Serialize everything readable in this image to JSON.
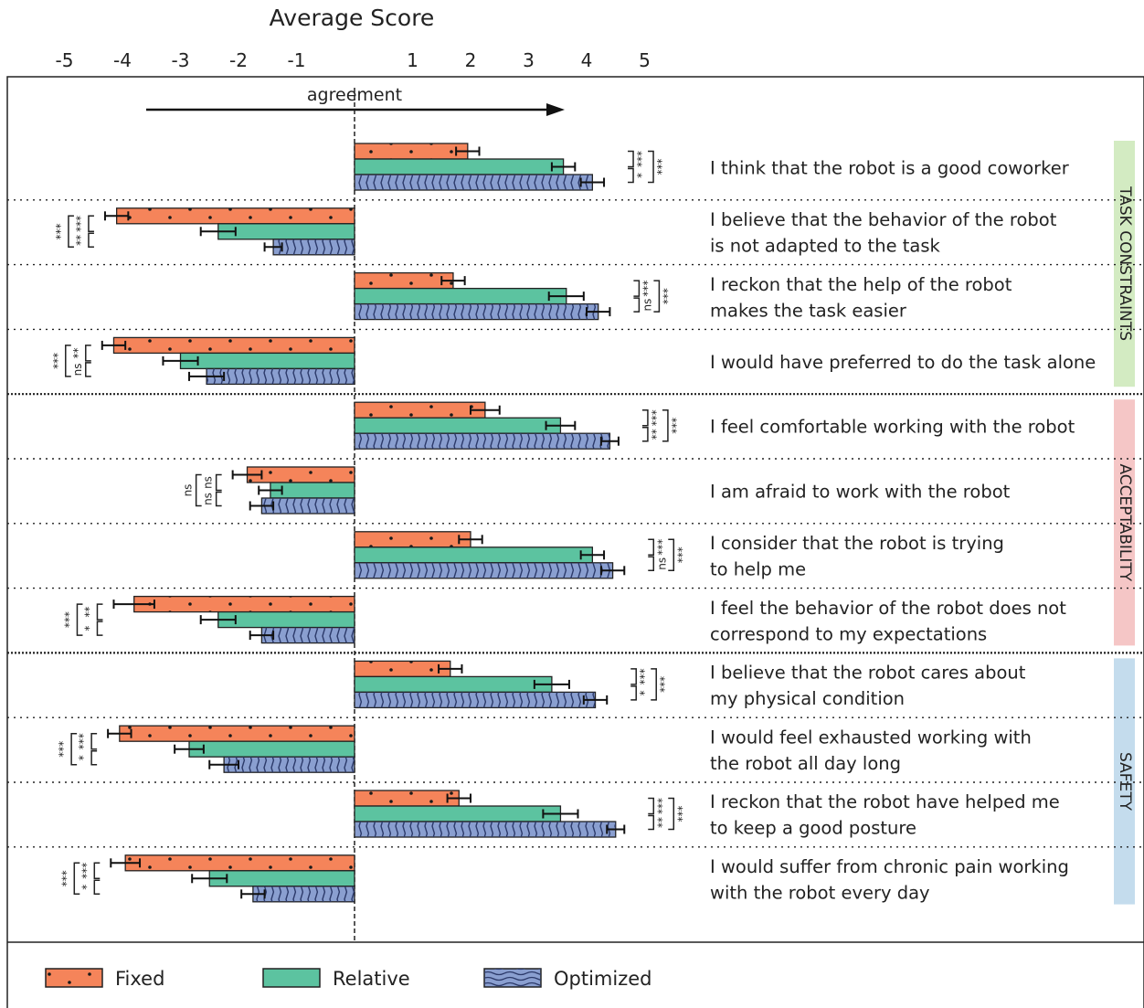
{
  "chart_data": {
    "type": "bar",
    "orientation": "horizontal",
    "title": "Average Score",
    "xlim": [
      -5,
      5
    ],
    "x_ticks": [
      "-5",
      "-4",
      "-3",
      "-2",
      "-1",
      "1",
      "2",
      "3",
      "4",
      "5"
    ],
    "direction_label": "agreement",
    "series": [
      {
        "name": "Fixed",
        "color": "#f5845a",
        "pattern": "dots"
      },
      {
        "name": "Relative",
        "color": "#5cc3a0",
        "pattern": "solid"
      },
      {
        "name": "Optimized",
        "color": "#8a9fd0",
        "pattern": "waves"
      }
    ],
    "groups": [
      {
        "name": "TASK CONSTRAINTS",
        "color": "#d3ebc2"
      },
      {
        "name": "ACCEPTABILITY",
        "color": "#f5c6c6"
      },
      {
        "name": "SAFETY",
        "color": "#c4dced"
      }
    ],
    "items": [
      {
        "group": 0,
        "lines": [
          "I think that the robot is a good coworker"
        ],
        "values": [
          1.95,
          3.6,
          4.1
        ],
        "errors": [
          0.2,
          0.2,
          0.2
        ],
        "sig": [
          "***",
          "*",
          "***"
        ]
      },
      {
        "group": 0,
        "lines": [
          "I believe that the behavior of the robot",
          "is not adapted to the task"
        ],
        "values": [
          -4.1,
          -2.35,
          -1.4
        ],
        "errors": [
          0.2,
          0.3,
          0.15
        ],
        "sig": [
          "***",
          "**",
          "***"
        ]
      },
      {
        "group": 0,
        "lines": [
          "I reckon that the help of the robot",
          "makes the task easier"
        ],
        "values": [
          1.7,
          3.65,
          4.2
        ],
        "errors": [
          0.2,
          0.3,
          0.2
        ],
        "sig": [
          "***",
          "ns",
          "***"
        ]
      },
      {
        "group": 0,
        "lines": [
          "I would have preferred to do the task alone"
        ],
        "values": [
          -4.15,
          -3.0,
          -2.55
        ],
        "errors": [
          0.2,
          0.3,
          0.3
        ],
        "sig": [
          "**",
          "ns",
          "***"
        ]
      },
      {
        "group": 1,
        "lines": [
          "I feel comfortable working with the robot"
        ],
        "values": [
          2.25,
          3.55,
          4.4
        ],
        "errors": [
          0.25,
          0.25,
          0.15
        ],
        "sig": [
          "***",
          "**",
          "***"
        ]
      },
      {
        "group": 1,
        "lines": [
          "I am afraid to work with the robot"
        ],
        "values": [
          -1.85,
          -1.45,
          -1.6
        ],
        "errors": [
          0.25,
          0.2,
          0.2
        ],
        "sig": [
          "ns",
          "ns",
          "ns"
        ]
      },
      {
        "group": 1,
        "lines": [
          "I consider that the robot is trying",
          "to help me"
        ],
        "values": [
          2.0,
          4.1,
          4.45
        ],
        "errors": [
          0.2,
          0.2,
          0.2
        ],
        "sig": [
          "***",
          "ns",
          "***"
        ]
      },
      {
        "group": 1,
        "lines": [
          "I feel the behavior of the robot does not",
          "correspond to my expectations"
        ],
        "values": [
          -3.8,
          -2.35,
          -1.6
        ],
        "errors": [
          0.35,
          0.3,
          0.2
        ],
        "sig": [
          "**",
          "*",
          "***"
        ]
      },
      {
        "group": 2,
        "lines": [
          "I believe that the robot cares about",
          "my physical condition"
        ],
        "values": [
          1.65,
          3.4,
          4.15
        ],
        "errors": [
          0.2,
          0.3,
          0.2
        ],
        "sig": [
          "***",
          "*",
          "***"
        ]
      },
      {
        "group": 2,
        "lines": [
          "I would feel exhausted working with",
          "the robot all day long"
        ],
        "values": [
          -4.05,
          -2.85,
          -2.25
        ],
        "errors": [
          0.2,
          0.25,
          0.25
        ],
        "sig": [
          "***",
          "*",
          "***"
        ]
      },
      {
        "group": 2,
        "lines": [
          "I reckon that the robot have helped me",
          "to keep a good posture"
        ],
        "values": [
          1.8,
          3.55,
          4.5
        ],
        "errors": [
          0.2,
          0.3,
          0.15
        ],
        "sig": [
          "***",
          "**",
          "***"
        ]
      },
      {
        "group": 2,
        "lines": [
          "I would suffer from chronic pain working",
          "with the robot every day"
        ],
        "values": [
          -3.95,
          -2.5,
          -1.75
        ],
        "errors": [
          0.25,
          0.3,
          0.2
        ],
        "sig": [
          "***",
          "*",
          "***"
        ]
      }
    ]
  }
}
